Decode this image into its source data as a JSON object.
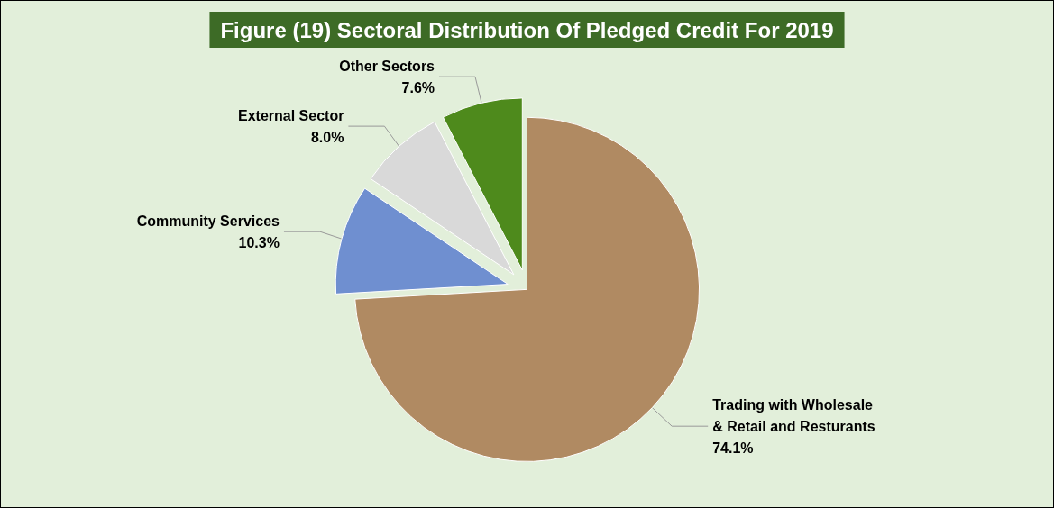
{
  "chart_data": {
    "type": "pie",
    "title": "Figure (19) Sectoral Distribution Of Pledged Credit For 2019",
    "categories": [
      "Trading with Wholesale & Retail and Resturants",
      "Community Services",
      "External Sector",
      "Other Sectors"
    ],
    "values": [
      74.1,
      10.3,
      8.0,
      7.6
    ],
    "value_labels": [
      "74.1%",
      "10.3%",
      "8.0%",
      "7.6%"
    ],
    "colors": [
      "#b08a62",
      "#6f8fd0",
      "#d9d9d9",
      "#4e8a1c"
    ],
    "legend": false
  }
}
